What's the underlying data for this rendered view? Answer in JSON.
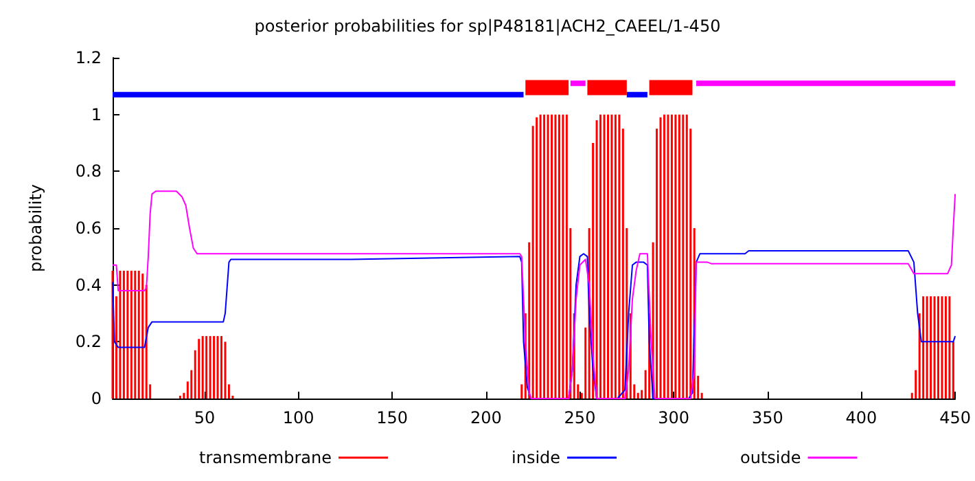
{
  "chart_data": {
    "type": "line",
    "title": "posterior probabilities for sp|P48181|ACH2_CAEEL/1-450",
    "ylabel": "probability",
    "xlim": [
      1,
      450
    ],
    "xticks": [
      50,
      100,
      150,
      200,
      250,
      300,
      350,
      400,
      450
    ],
    "ylim": [
      0,
      1.2
    ],
    "yticks": [
      0,
      0.2,
      0.4,
      0.6,
      0.8,
      1,
      1.2
    ],
    "grid": false,
    "legend": "bottom",
    "marker": "none",
    "series": [
      {
        "name": "transmembrane",
        "type": "bar",
        "color": "#ff0000",
        "x": [
          1,
          3,
          5,
          7,
          9,
          11,
          13,
          15,
          17,
          19,
          21,
          37,
          39,
          41,
          43,
          45,
          47,
          49,
          51,
          53,
          55,
          57,
          59,
          61,
          63,
          65,
          219,
          221,
          223,
          225,
          227,
          229,
          231,
          233,
          235,
          237,
          239,
          241,
          243,
          245,
          247,
          249,
          251,
          253,
          255,
          257,
          259,
          261,
          263,
          265,
          267,
          269,
          271,
          273,
          275,
          277,
          279,
          281,
          283,
          285,
          287,
          289,
          291,
          293,
          295,
          297,
          299,
          301,
          303,
          305,
          307,
          309,
          311,
          313,
          315,
          427,
          429,
          431,
          433,
          435,
          437,
          439,
          441,
          443,
          445,
          447,
          449
        ],
        "values": [
          0.45,
          0.36,
          0.45,
          0.45,
          0.45,
          0.45,
          0.45,
          0.45,
          0.44,
          0.4,
          0.05,
          0.01,
          0.02,
          0.06,
          0.1,
          0.17,
          0.21,
          0.22,
          0.22,
          0.22,
          0.22,
          0.22,
          0.22,
          0.2,
          0.05,
          0.01,
          0.05,
          0.3,
          0.55,
          0.96,
          0.99,
          1,
          1,
          1,
          1,
          1,
          1,
          1,
          1,
          0.6,
          0.3,
          0.05,
          0.02,
          0.25,
          0.6,
          0.9,
          0.98,
          1,
          1,
          1,
          1,
          1,
          1,
          0.95,
          0.6,
          0.3,
          0.05,
          0.02,
          0.03,
          0.1,
          0.3,
          0.55,
          0.95,
          0.99,
          1,
          1,
          1,
          1,
          1,
          1,
          1,
          0.95,
          0.6,
          0.08,
          0.02,
          0.02,
          0.1,
          0.3,
          0.36,
          0.36,
          0.36,
          0.36,
          0.36,
          0.36,
          0.36,
          0.36,
          0.2
        ]
      },
      {
        "name": "inside",
        "color": "#0000ff",
        "x": [
          1,
          2,
          4,
          10,
          18,
          20,
          22,
          30,
          60,
          61,
          63,
          64,
          100,
          128,
          218,
          219,
          220,
          222,
          224,
          244,
          246,
          248,
          250,
          252,
          254,
          255,
          257,
          259,
          270,
          274,
          276,
          278,
          280,
          284,
          286,
          287,
          289,
          308,
          310,
          312,
          314,
          338,
          340,
          425,
          428,
          430,
          432,
          449,
          450
        ],
        "values": [
          0.41,
          0.2,
          0.18,
          0.18,
          0.18,
          0.25,
          0.27,
          0.27,
          0.27,
          0.3,
          0.48,
          0.49,
          0.49,
          0.49,
          0.5,
          0.48,
          0.2,
          0.04,
          0,
          0,
          0.1,
          0.4,
          0.5,
          0.51,
          0.5,
          0.3,
          0.1,
          0,
          0,
          0.03,
          0.3,
          0.47,
          0.48,
          0.48,
          0.47,
          0.2,
          0,
          0,
          0.02,
          0.48,
          0.51,
          0.51,
          0.52,
          0.52,
          0.48,
          0.3,
          0.2,
          0.2,
          0.22
        ]
      },
      {
        "name": "outside",
        "color": "#ff00ff",
        "x": [
          1,
          3,
          4,
          18,
          19,
          20,
          21,
          22,
          24,
          35,
          38,
          40,
          42,
          44,
          46,
          218,
          219,
          221,
          223,
          224,
          244,
          246,
          248,
          250,
          253,
          255,
          257,
          259,
          274,
          276,
          278,
          280,
          282,
          286,
          288,
          290,
          309,
          311,
          312,
          318,
          320,
          425,
          428,
          430,
          446,
          448,
          449,
          450
        ],
        "values": [
          0.47,
          0.47,
          0.38,
          0.38,
          0.39,
          0.5,
          0.65,
          0.72,
          0.73,
          0.73,
          0.71,
          0.68,
          0.6,
          0.53,
          0.51,
          0.51,
          0.5,
          0.2,
          0.02,
          0,
          0,
          0.1,
          0.35,
          0.47,
          0.49,
          0.4,
          0.15,
          0,
          0,
          0.1,
          0.35,
          0.45,
          0.51,
          0.51,
          0.2,
          0,
          0,
          0.1,
          0.48,
          0.48,
          0.475,
          0.475,
          0.44,
          0.44,
          0.44,
          0.47,
          0.6,
          0.72
        ]
      },
      {
        "color": "#0000ff",
        "x": [
          1,
          220,
          221,
          275,
          286
        ],
        "values": [
          1.07,
          1.07,
          null,
          1.07,
          1.07
        ]
      },
      {
        "color": "#ff00ff",
        "x": [
          245,
          253,
          254,
          312,
          450
        ],
        "values": [
          1.11,
          1.11,
          null,
          1.11,
          1.11
        ]
      },
      {
        "color": "#ff0000",
        "x": [
          221,
          244,
          245,
          254,
          275,
          276,
          287,
          310
        ],
        "values": [
          1.095,
          1.095,
          null,
          1.095,
          1.095,
          null,
          1.095,
          1.095
        ]
      }
    ]
  }
}
